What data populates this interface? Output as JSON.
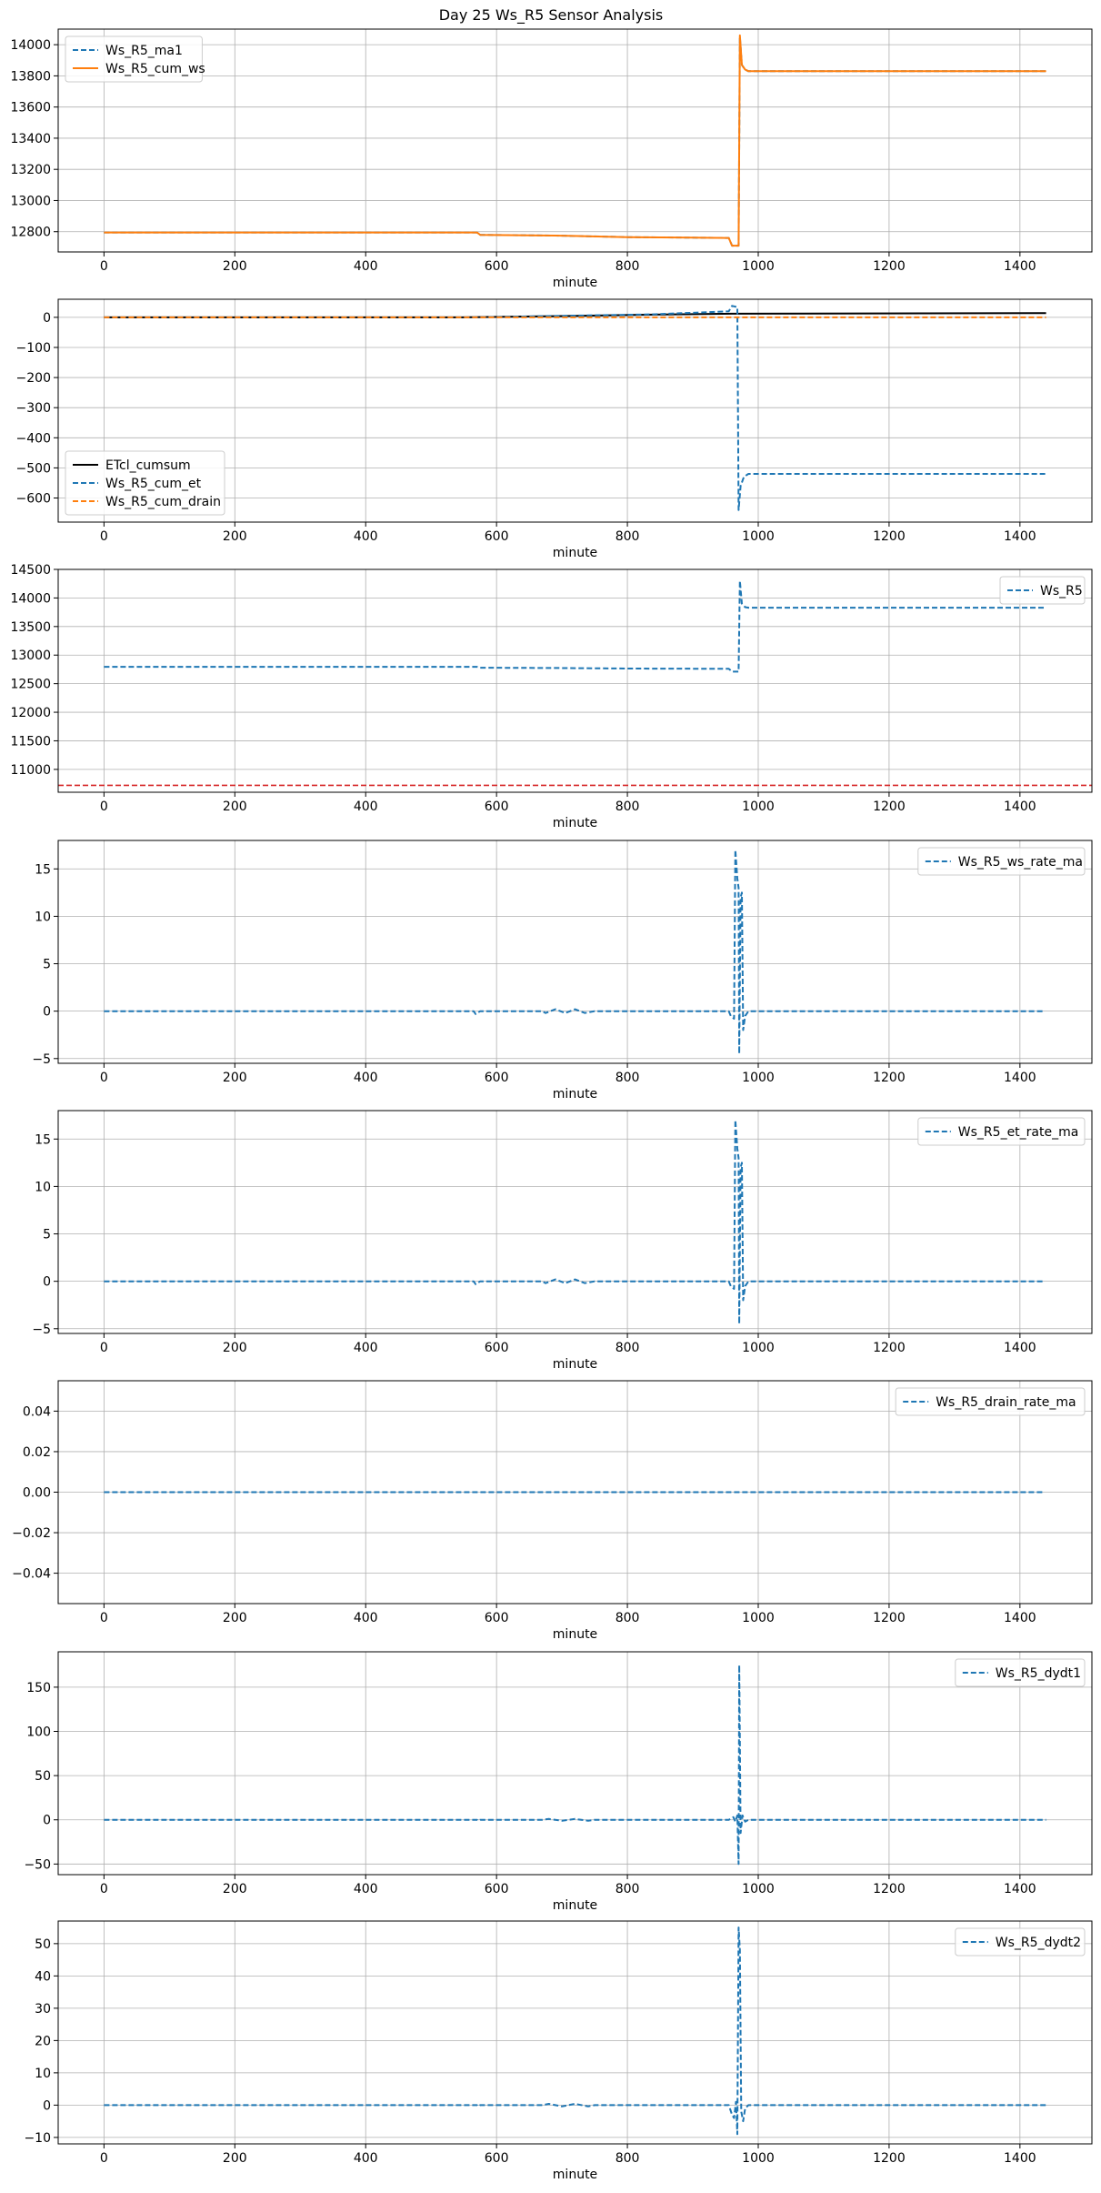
{
  "title": "Day 25 Ws_R5 Sensor Analysis",
  "colors": {
    "blue": "#1f77b4",
    "orange": "#ff7f0e",
    "black": "#000000",
    "red": "#d62728",
    "grid": "#b0b0b0"
  },
  "chart_data": [
    {
      "type": "line",
      "xlabel": "minute",
      "xlim": [
        -70,
        1510
      ],
      "xticks": [
        0,
        200,
        400,
        600,
        800,
        1000,
        1200,
        1400
      ],
      "ylim": [
        12670,
        14100
      ],
      "yticks": [
        12800,
        13000,
        13200,
        13400,
        13600,
        13800,
        14000
      ],
      "grid": true,
      "legend": "upper-left",
      "series": [
        {
          "name": "Ws_R5_ma1",
          "color": "#1f77b4",
          "dash": true,
          "points": [
            [
              0,
              12795
            ],
            [
              570,
              12795
            ],
            [
              575,
              12780
            ],
            [
              690,
              12775
            ],
            [
              800,
              12765
            ],
            [
              955,
              12760
            ],
            [
              960,
              12710
            ],
            [
              970,
              12710
            ],
            [
              972,
              14050
            ],
            [
              975,
              13870
            ],
            [
              980,
              13840
            ],
            [
              985,
              13830
            ],
            [
              1440,
              13830
            ]
          ]
        },
        {
          "name": "Ws_R5_cum_ws",
          "color": "#ff7f0e",
          "dash": false,
          "points": [
            [
              0,
              12795
            ],
            [
              570,
              12795
            ],
            [
              575,
              12780
            ],
            [
              690,
              12775
            ],
            [
              800,
              12765
            ],
            [
              955,
              12760
            ],
            [
              960,
              12710
            ],
            [
              970,
              12710
            ],
            [
              972,
              14060
            ],
            [
              975,
              13870
            ],
            [
              980,
              13840
            ],
            [
              985,
              13830
            ],
            [
              1440,
              13830
            ]
          ]
        }
      ]
    },
    {
      "type": "line",
      "xlabel": "minute",
      "xlim": [
        -70,
        1510
      ],
      "xticks": [
        0,
        200,
        400,
        600,
        800,
        1000,
        1200,
        1400
      ],
      "ylim": [
        -680,
        60
      ],
      "yticks": [
        -600,
        -500,
        -400,
        -300,
        -200,
        -100,
        0
      ],
      "grid": true,
      "legend": "lower-left",
      "series": [
        {
          "name": "ETcl_cumsum",
          "color": "#000000",
          "dash": false,
          "points": [
            [
              0,
              0
            ],
            [
              540,
              0
            ],
            [
              700,
              4
            ],
            [
              840,
              9
            ],
            [
              960,
              12
            ],
            [
              1440,
              14
            ]
          ]
        },
        {
          "name": "Ws_R5_cum_et",
          "color": "#1f77b4",
          "dash": true,
          "points": [
            [
              0,
              0
            ],
            [
              570,
              0
            ],
            [
              700,
              5
            ],
            [
              840,
              10
            ],
            [
              955,
              20
            ],
            [
              960,
              38
            ],
            [
              968,
              34
            ],
            [
              970,
              -640
            ],
            [
              973,
              -560
            ],
            [
              978,
              -530
            ],
            [
              985,
              -520
            ],
            [
              1440,
              -520
            ]
          ]
        },
        {
          "name": "Ws_R5_cum_drain",
          "color": "#ff7f0e",
          "dash": true,
          "points": [
            [
              0,
              0
            ],
            [
              1440,
              0
            ]
          ]
        }
      ]
    },
    {
      "type": "line",
      "xlabel": "minute",
      "xlim": [
        -70,
        1510
      ],
      "xticks": [
        0,
        200,
        400,
        600,
        800,
        1000,
        1200,
        1400
      ],
      "ylim": [
        10600,
        14500
      ],
      "yticks": [
        11000,
        11500,
        12000,
        12500,
        13000,
        13500,
        14000,
        14500
      ],
      "grid": true,
      "legend": "upper-right",
      "hline": {
        "value": 10720,
        "color": "#d62728"
      },
      "series": [
        {
          "name": "Ws_R5",
          "color": "#1f77b4",
          "dash": true,
          "points": [
            [
              0,
              12795
            ],
            [
              570,
              12795
            ],
            [
              575,
              12780
            ],
            [
              690,
              12775
            ],
            [
              800,
              12765
            ],
            [
              955,
              12760
            ],
            [
              960,
              12710
            ],
            [
              970,
              12710
            ],
            [
              972,
              14300
            ],
            [
              975,
              13900
            ],
            [
              980,
              13840
            ],
            [
              985,
              13830
            ],
            [
              1440,
              13830
            ]
          ]
        }
      ]
    },
    {
      "type": "line",
      "xlabel": "minute",
      "xlim": [
        -70,
        1510
      ],
      "xticks": [
        0,
        200,
        400,
        600,
        800,
        1000,
        1200,
        1400
      ],
      "ylim": [
        -5.5,
        18
      ],
      "yticks": [
        -5,
        0,
        5,
        10,
        15
      ],
      "grid": true,
      "legend": "upper-right",
      "series": [
        {
          "name": "Ws_R5_ws_rate_ma",
          "color": "#1f77b4",
          "dash": true,
          "points": [
            [
              0,
              0
            ],
            [
              565,
              0
            ],
            [
              568,
              -0.3
            ],
            [
              575,
              0
            ],
            [
              670,
              0
            ],
            [
              675,
              -0.2
            ],
            [
              690,
              0.2
            ],
            [
              705,
              -0.2
            ],
            [
              720,
              0.2
            ],
            [
              735,
              -0.2
            ],
            [
              750,
              0
            ],
            [
              955,
              0
            ],
            [
              958,
              -0.5
            ],
            [
              963,
              -0.8
            ],
            [
              965,
              17
            ],
            [
              968,
              14
            ],
            [
              970,
              13
            ],
            [
              971,
              -4.5
            ],
            [
              973,
              12
            ],
            [
              975,
              12.5
            ],
            [
              977,
              -2
            ],
            [
              980,
              -0.5
            ],
            [
              985,
              0
            ],
            [
              1435,
              0
            ]
          ]
        }
      ]
    },
    {
      "type": "line",
      "xlabel": "minute",
      "xlim": [
        -70,
        1510
      ],
      "xticks": [
        0,
        200,
        400,
        600,
        800,
        1000,
        1200,
        1400
      ],
      "ylim": [
        -5.5,
        18
      ],
      "yticks": [
        -5,
        0,
        5,
        10,
        15
      ],
      "grid": true,
      "legend": "upper-right",
      "series": [
        {
          "name": "Ws_R5_et_rate_ma",
          "color": "#1f77b4",
          "dash": true,
          "points": [
            [
              0,
              0
            ],
            [
              565,
              0
            ],
            [
              568,
              -0.3
            ],
            [
              575,
              0
            ],
            [
              670,
              0
            ],
            [
              675,
              -0.2
            ],
            [
              690,
              0.2
            ],
            [
              705,
              -0.2
            ],
            [
              720,
              0.2
            ],
            [
              735,
              -0.2
            ],
            [
              750,
              0
            ],
            [
              955,
              0
            ],
            [
              958,
              -0.5
            ],
            [
              963,
              -0.8
            ],
            [
              965,
              17
            ],
            [
              968,
              14
            ],
            [
              970,
              13
            ],
            [
              971,
              -4.5
            ],
            [
              973,
              12
            ],
            [
              975,
              12.5
            ],
            [
              977,
              -2
            ],
            [
              980,
              -0.5
            ],
            [
              985,
              0
            ],
            [
              1435,
              0
            ]
          ]
        }
      ]
    },
    {
      "type": "line",
      "xlabel": "minute",
      "xlim": [
        -70,
        1510
      ],
      "xticks": [
        0,
        200,
        400,
        600,
        800,
        1000,
        1200,
        1400
      ],
      "ylim": [
        -0.055,
        0.055
      ],
      "yticks": [
        -0.04,
        -0.02,
        0.0,
        0.02,
        0.04
      ],
      "ytickfmt": 2,
      "grid": true,
      "legend": "upper-right",
      "series": [
        {
          "name": "Ws_R5_drain_rate_ma",
          "color": "#1f77b4",
          "dash": true,
          "points": [
            [
              0,
              0
            ],
            [
              1435,
              0
            ]
          ]
        }
      ]
    },
    {
      "type": "line",
      "xlabel": "minute",
      "xlim": [
        -70,
        1510
      ],
      "xticks": [
        0,
        200,
        400,
        600,
        800,
        1000,
        1200,
        1400
      ],
      "ylim": [
        -62,
        190
      ],
      "yticks": [
        -50,
        0,
        50,
        100,
        150
      ],
      "grid": true,
      "legend": "upper-right",
      "series": [
        {
          "name": "Ws_R5_dydt1",
          "color": "#1f77b4",
          "dash": true,
          "points": [
            [
              0,
              0
            ],
            [
              570,
              0
            ],
            [
              572,
              -1
            ],
            [
              575,
              0
            ],
            [
              670,
              0
            ],
            [
              680,
              1
            ],
            [
              700,
              -1
            ],
            [
              720,
              1
            ],
            [
              740,
              -1
            ],
            [
              750,
              0
            ],
            [
              955,
              0
            ],
            [
              962,
              3
            ],
            [
              965,
              -2
            ],
            [
              968,
              5
            ],
            [
              970,
              -50
            ],
            [
              971,
              175
            ],
            [
              973,
              -15
            ],
            [
              976,
              5
            ],
            [
              980,
              -2
            ],
            [
              985,
              0
            ],
            [
              1440,
              0
            ]
          ]
        }
      ]
    },
    {
      "type": "line",
      "xlabel": "minute",
      "xlim": [
        -70,
        1510
      ],
      "xticks": [
        0,
        200,
        400,
        600,
        800,
        1000,
        1200,
        1400
      ],
      "ylim": [
        -12,
        57
      ],
      "yticks": [
        -10,
        0,
        10,
        20,
        30,
        40,
        50
      ],
      "grid": true,
      "legend": "upper-right",
      "series": [
        {
          "name": "Ws_R5_dydt2",
          "color": "#1f77b4",
          "dash": true,
          "points": [
            [
              0,
              0
            ],
            [
              570,
              0
            ],
            [
              572,
              -0.4
            ],
            [
              575,
              0
            ],
            [
              670,
              0
            ],
            [
              680,
              0.4
            ],
            [
              700,
              -0.4
            ],
            [
              720,
              0.4
            ],
            [
              740,
              -0.4
            ],
            [
              750,
              0
            ],
            [
              955,
              0
            ],
            [
              960,
              -3
            ],
            [
              963,
              -4
            ],
            [
              966,
              1
            ],
            [
              968,
              -9
            ],
            [
              970,
              55
            ],
            [
              972,
              48
            ],
            [
              974,
              -2
            ],
            [
              977,
              -5
            ],
            [
              980,
              -1
            ],
            [
              985,
              0
            ],
            [
              1440,
              0
            ]
          ]
        }
      ]
    }
  ]
}
